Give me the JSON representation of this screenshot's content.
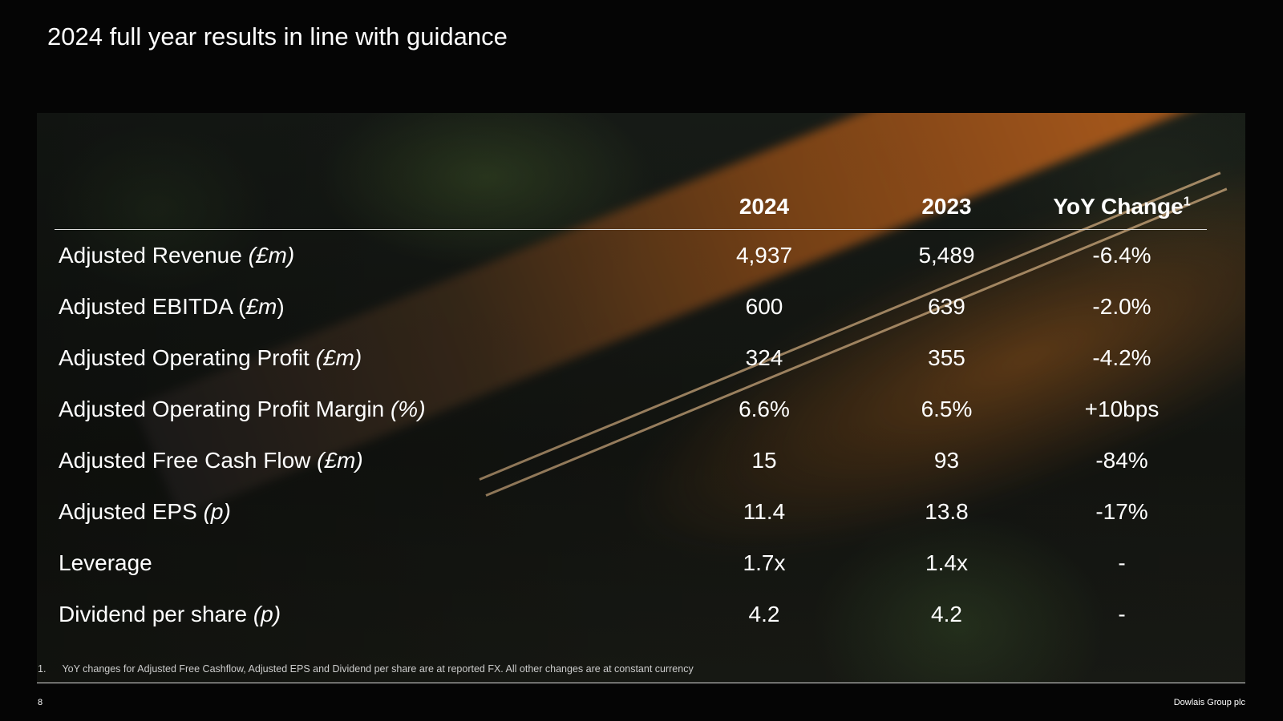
{
  "title": "2024 full year results in line with guidance",
  "table": {
    "headers": [
      "2024",
      "2023",
      "YoY Change",
      "1"
    ],
    "rows": [
      {
        "label": "Adjusted Revenue ",
        "unit": "(£m)",
        "v2024": "4,937",
        "v2023": "5,489",
        "yoy": "-6.4%"
      },
      {
        "label": "Adjusted EBITDA (",
        "unit": "£m",
        "suffix": ")",
        "v2024": "600",
        "v2023": "639",
        "yoy": "-2.0%"
      },
      {
        "label": "Adjusted Operating Profit ",
        "unit": "(£m)",
        "v2024": "324",
        "v2023": "355",
        "yoy": "-4.2%"
      },
      {
        "label": "Adjusted Operating Profit Margin ",
        "unit": "(%)",
        "v2024": "6.6%",
        "v2023": "6.5%",
        "yoy": "+10bps"
      },
      {
        "label": "Adjusted Free Cash Flow ",
        "unit": "(£m)",
        "v2024": "15",
        "v2023": "93",
        "yoy": "-84%"
      },
      {
        "label": "Adjusted EPS ",
        "unit": "(p)",
        "v2024": "11.4",
        "v2023": "13.8",
        "yoy": "-17%"
      },
      {
        "label": "Leverage",
        "unit": "",
        "v2024": "1.7x",
        "v2023": "1.4x",
        "yoy": "-"
      },
      {
        "label": "Dividend per share ",
        "unit": "(p)",
        "v2024": "4.2",
        "v2023": "4.2",
        "yoy": "-"
      }
    ]
  },
  "footnote": {
    "number": "1.",
    "text": "YoY changes for Adjusted Free Cashflow, Adjusted  EPS and Dividend per share are at reported FX. All other changes are at constant currency"
  },
  "footer": {
    "page": "8",
    "company": "Dowlais Group plc"
  }
}
